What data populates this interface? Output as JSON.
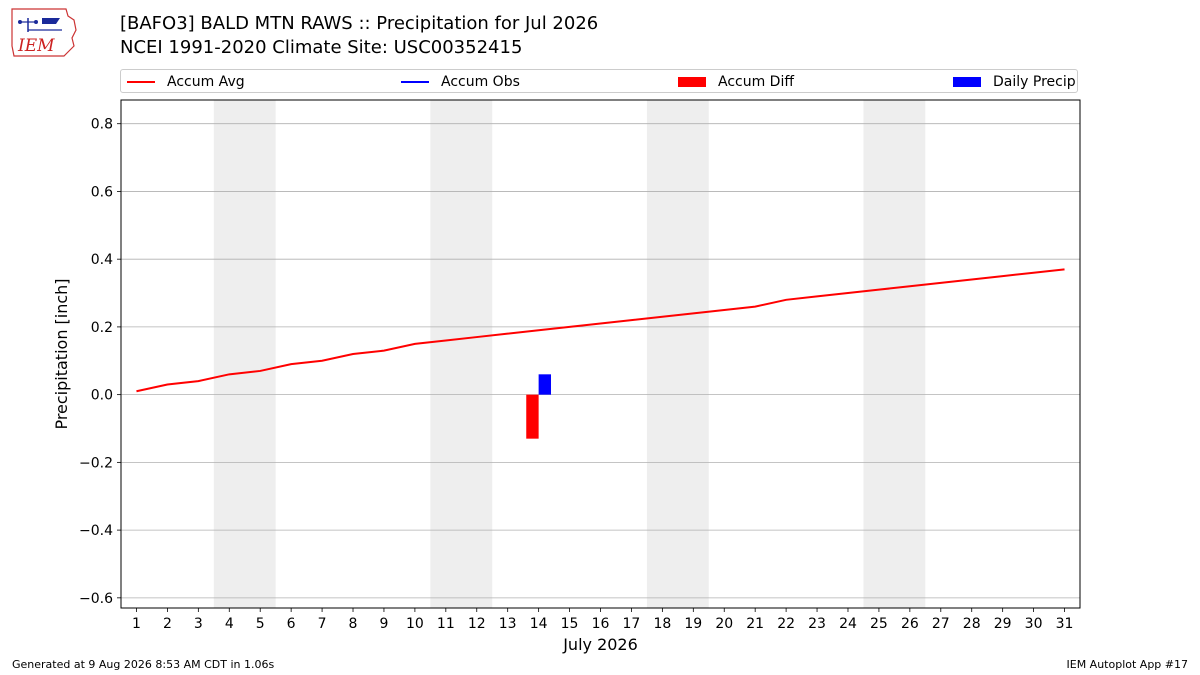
{
  "title": "[BAFO3] BALD MTN RAWS :: Precipitation for Jul 2026",
  "subtitle": "NCEI 1991-2020 Climate Site: USC00352415",
  "logo_text": "IEM",
  "footer": {
    "left": "Generated at 9 Aug 2026 8:53 AM CDT in 1.06s",
    "right": "IEM Autoplot App #17"
  },
  "colors": {
    "accum_avg": "#ff0000",
    "accum_obs": "#0000ff",
    "accum_diff": "#ff0000",
    "daily_precip": "#0000ff",
    "weekend_shade": "#eeeeee",
    "grid": "#b0b0b0"
  },
  "chart_data": {
    "type": "line",
    "title": "[BAFO3] BALD MTN RAWS :: Precipitation for Jul 2026",
    "xlabel": "July 2026",
    "ylabel": "Precipitation [inch]",
    "xlim": [
      0.5,
      31.5
    ],
    "ylim": [
      -0.63,
      0.87
    ],
    "x_ticks": [
      1,
      2,
      3,
      4,
      5,
      6,
      7,
      8,
      9,
      10,
      11,
      12,
      13,
      14,
      15,
      16,
      17,
      18,
      19,
      20,
      21,
      22,
      23,
      24,
      25,
      26,
      27,
      28,
      29,
      30,
      31
    ],
    "y_ticks": [
      -0.6,
      -0.4,
      -0.2,
      0.0,
      0.2,
      0.4,
      0.6,
      0.8
    ],
    "y_tick_labels": [
      "−0.6",
      "−0.4",
      "−0.2",
      "0.0",
      "0.2",
      "0.4",
      "0.6",
      "0.8"
    ],
    "grid": "horizontal",
    "legend_position": "top",
    "legend": [
      "Accum Avg",
      "Accum Obs",
      "Accum Diff",
      "Daily Precip"
    ],
    "weekend_shading": [
      [
        3.5,
        5.5
      ],
      [
        10.5,
        12.5
      ],
      [
        17.5,
        19.5
      ],
      [
        24.5,
        26.5
      ]
    ],
    "series": [
      {
        "name": "Accum Avg",
        "type": "line",
        "x": [
          1,
          2,
          3,
          4,
          5,
          6,
          7,
          8,
          9,
          10,
          11,
          12,
          13,
          14,
          15,
          16,
          17,
          18,
          19,
          20,
          21,
          22,
          23,
          24,
          25,
          26,
          27,
          28,
          29,
          30,
          31
        ],
        "values": [
          0.01,
          0.03,
          0.04,
          0.06,
          0.07,
          0.09,
          0.1,
          0.12,
          0.13,
          0.15,
          0.16,
          0.17,
          0.18,
          0.19,
          0.2,
          0.21,
          0.22,
          0.23,
          0.24,
          0.25,
          0.26,
          0.28,
          0.29,
          0.3,
          0.31,
          0.32,
          0.33,
          0.34,
          0.35,
          0.36,
          0.37
        ]
      },
      {
        "name": "Accum Obs",
        "type": "line",
        "x": [],
        "values": []
      },
      {
        "name": "Accum Diff",
        "type": "bar",
        "x": [
          13.8
        ],
        "values": [
          -0.13
        ]
      },
      {
        "name": "Daily Precip",
        "type": "bar",
        "x": [
          14.2
        ],
        "values": [
          0.06
        ]
      }
    ]
  }
}
